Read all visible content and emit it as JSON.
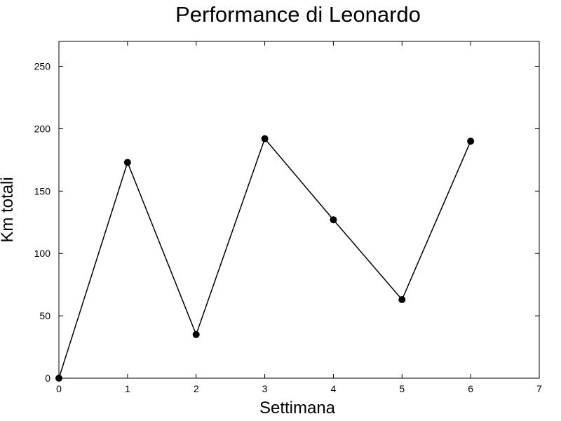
{
  "chart_data": {
    "type": "line",
    "title": "Performance di Leonardo",
    "xlabel": "Settimana",
    "ylabel": "Km totali",
    "xlim": [
      0,
      7
    ],
    "ylim": [
      0,
      270
    ],
    "xticks": [
      0,
      1,
      2,
      3,
      4,
      5,
      6,
      7
    ],
    "yticks": [
      0,
      50,
      100,
      150,
      200,
      250
    ],
    "grid": false,
    "series": [
      {
        "x": [
          0,
          1,
          2,
          3,
          4,
          5,
          6
        ],
        "y": [
          0,
          173,
          35,
          192,
          127,
          63,
          190
        ],
        "color": "#000000",
        "marker": "circle"
      }
    ]
  }
}
